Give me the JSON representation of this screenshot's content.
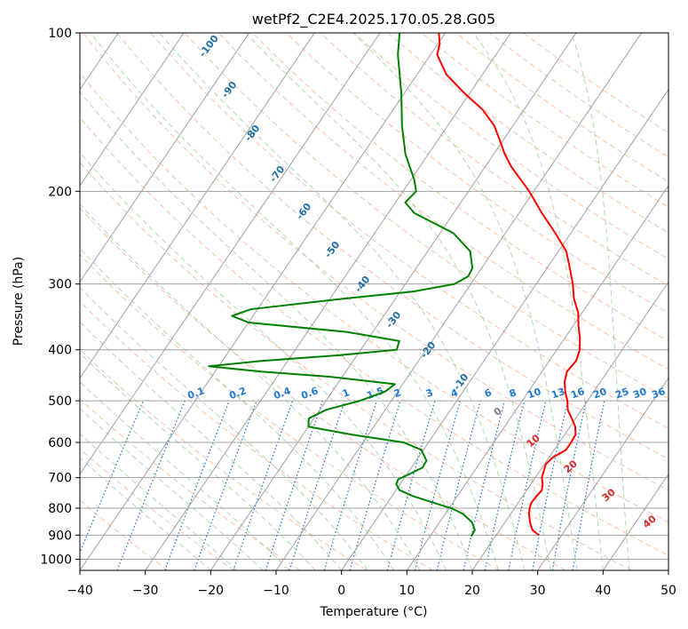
{
  "chart_data": {
    "type": "line",
    "title": "wetPf2_C2E4.2025.170.05.28.G05",
    "xlabel": "Temperature (°C)",
    "ylabel": "Pressure (hPa)",
    "xlim": [
      -40,
      50
    ],
    "ylim": [
      1050,
      100
    ],
    "y_scale": "log",
    "x_ticks": [
      -40,
      -30,
      -20,
      -10,
      0,
      10,
      20,
      30,
      40,
      50
    ],
    "x_tick_labels": [
      "−40",
      "−30",
      "−20",
      "−10",
      "0",
      "10",
      "20",
      "30",
      "40",
      "50"
    ],
    "y_ticks": [
      100,
      200,
      300,
      400,
      500,
      600,
      700,
      800,
      900,
      1000
    ],
    "y_tick_labels": [
      "100",
      "200",
      "300",
      "400",
      "500",
      "600",
      "700",
      "800",
      "900",
      "1000"
    ],
    "grid": true,
    "skew": "skew-T log-P",
    "series": [
      {
        "color": "#ff0000",
        "points": [
          [
            900,
            26.5
          ],
          [
            880,
            25
          ],
          [
            850,
            23.8
          ],
          [
            820,
            22.8
          ],
          [
            800,
            22.3
          ],
          [
            780,
            22
          ],
          [
            760,
            22.1
          ],
          [
            740,
            22.3
          ],
          [
            720,
            21.8
          ],
          [
            700,
            21
          ],
          [
            680,
            20.6
          ],
          [
            660,
            20.2
          ],
          [
            640,
            20.6
          ],
          [
            620,
            21.8
          ],
          [
            600,
            21.8
          ],
          [
            580,
            21.7
          ],
          [
            560,
            20.8
          ],
          [
            540,
            19.4
          ],
          [
            520,
            17.9
          ],
          [
            500,
            16.9
          ],
          [
            480,
            15.6
          ],
          [
            460,
            14.5
          ],
          [
            440,
            13.8
          ],
          [
            420,
            14.1
          ],
          [
            400,
            13.5
          ],
          [
            380,
            12.3
          ],
          [
            360,
            10.8
          ],
          [
            340,
            9.4
          ],
          [
            320,
            7.3
          ],
          [
            300,
            5.6
          ],
          [
            280,
            3.5
          ],
          [
            260,
            1.2
          ],
          [
            240,
            -2.4
          ],
          [
            220,
            -6.5
          ],
          [
            200,
            -10.7
          ],
          [
            180,
            -15.9
          ],
          [
            170,
            -18.3
          ],
          [
            160,
            -20.5
          ],
          [
            150,
            -22.9
          ],
          [
            140,
            -26.3
          ],
          [
            130,
            -30.9
          ],
          [
            120,
            -35.5
          ],
          [
            110,
            -39
          ],
          [
            105,
            -39.7
          ],
          [
            100,
            -41
          ]
        ]
      },
      {
        "color": "#008000",
        "points": [
          [
            905,
            16.3
          ],
          [
            880,
            16.2
          ],
          [
            850,
            14.9
          ],
          [
            820,
            12.7
          ],
          [
            800,
            10.3
          ],
          [
            780,
            6.9
          ],
          [
            760,
            3.4
          ],
          [
            740,
            0.6
          ],
          [
            720,
            -0.6
          ],
          [
            705,
            -0.8
          ],
          [
            690,
            0.3
          ],
          [
            670,
            1.7
          ],
          [
            650,
            1.6
          ],
          [
            620,
            -0.3
          ],
          [
            600,
            -3.8
          ],
          [
            580,
            -12.5
          ],
          [
            560,
            -20
          ],
          [
            540,
            -20.8
          ],
          [
            520,
            -19
          ],
          [
            500,
            -14.8
          ],
          [
            480,
            -11.9
          ],
          [
            465,
            -11.2
          ],
          [
            450,
            -22
          ],
          [
            440,
            -33
          ],
          [
            430,
            -41.5
          ],
          [
            420,
            -34
          ],
          [
            410,
            -23
          ],
          [
            400,
            -14.5
          ],
          [
            385,
            -15
          ],
          [
            370,
            -24
          ],
          [
            355,
            -40
          ],
          [
            345,
            -43.2
          ],
          [
            335,
            -41
          ],
          [
            320,
            -28
          ],
          [
            310,
            -18
          ],
          [
            300,
            -12.5
          ],
          [
            290,
            -11.2
          ],
          [
            280,
            -11.4
          ],
          [
            260,
            -13.5
          ],
          [
            240,
            -18
          ],
          [
            220,
            -26
          ],
          [
            210,
            -28.5
          ],
          [
            200,
            -28
          ],
          [
            190,
            -29.5
          ],
          [
            170,
            -33.5
          ],
          [
            150,
            -37
          ],
          [
            130,
            -40.5
          ],
          [
            110,
            -45
          ],
          [
            100,
            -47
          ]
        ]
      }
    ],
    "dry_adiabat_labels": [
      "-100",
      "-90",
      "-80",
      "-70",
      "-60",
      "-50",
      "-40",
      "-30",
      "-20",
      "-10"
    ],
    "moist_adiabat_labels": [
      "0",
      "10",
      "20",
      "30",
      "40"
    ],
    "mixing_ratio_labels": [
      "0.1",
      "0.2",
      "0.4",
      "0.6",
      "1",
      "1.5",
      "2",
      "3",
      "4",
      "6",
      "8",
      "10",
      "13",
      "16",
      "20",
      "25",
      "30",
      "36"
    ],
    "mixing_ratio_values": [
      0.1,
      0.2,
      0.4,
      0.6,
      1,
      1.5,
      2,
      3,
      4,
      6,
      8,
      10,
      13,
      16,
      20,
      25,
      30,
      36
    ],
    "colors": {
      "temperature": "#ff0000",
      "dewpoint": "#008000",
      "isotherm": "#a0a0a0",
      "isobar": "#a0a0a0",
      "dry_adiabat": "#f4a582",
      "moist_adiabat": "#8fc98f",
      "mixing_ratio": "#1f78d4",
      "dry_adiabat_label": "#1f6fa8",
      "moist_adiabat_label": "#d62728",
      "zero_moist_label": "#808080"
    }
  }
}
